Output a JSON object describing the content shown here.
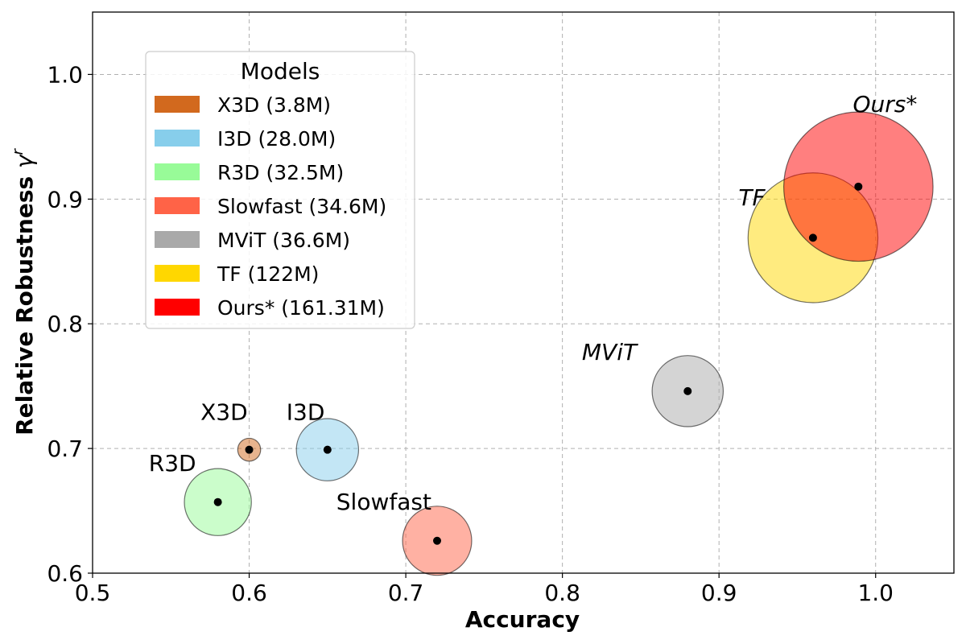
{
  "chart_data": {
    "type": "scatter",
    "xlabel": "Accuracy",
    "ylabel_main": "Relative Robustness ",
    "ylabel_symbol": "γ",
    "ylabel_superscript": "r",
    "xlim": [
      0.5,
      1.05
    ],
    "ylim": [
      0.6,
      1.05
    ],
    "xticks": [
      0.5,
      0.6,
      0.7,
      0.8,
      0.9,
      1.0
    ],
    "xtick_labels": [
      "0.5",
      "0.6",
      "0.7",
      "0.8",
      "0.9",
      "1.0"
    ],
    "yticks": [
      0.6,
      0.7,
      0.8,
      0.9,
      1.0
    ],
    "ytick_labels": [
      "0.6",
      "0.7",
      "0.8",
      "0.9",
      "1.0"
    ],
    "grid": true,
    "legend": {
      "title": "Models",
      "position": "upper-left",
      "entries": [
        {
          "label": "X3D (3.8M)",
          "color": "#D2691E"
        },
        {
          "label": "I3D (28.0M)",
          "color": "#87CEEB"
        },
        {
          "label": "R3D (32.5M)",
          "color": "#98FB98"
        },
        {
          "label": "Slowfast (34.6M)",
          "color": "#FF6347"
        },
        {
          "label": "MViT (36.6M)",
          "color": "#A9A9A9"
        },
        {
          "label": "TF (122M)",
          "color": "#FFD700"
        },
        {
          "label": "Ours* (161.31M)",
          "color": "#FF0000"
        }
      ]
    },
    "points": [
      {
        "name": "X3D",
        "x": 0.6,
        "y": 0.699,
        "params_m": 3.8,
        "color": "#D2691E",
        "label": "X3D",
        "italic": false,
        "label_x": 0.584,
        "label_y": 0.723,
        "anchor": "middle"
      },
      {
        "name": "I3D",
        "x": 0.65,
        "y": 0.699,
        "params_m": 28.0,
        "color": "#87CEEB",
        "label": "I3D",
        "italic": false,
        "label_x": 0.636,
        "label_y": 0.723,
        "anchor": "middle"
      },
      {
        "name": "R3D",
        "x": 0.58,
        "y": 0.657,
        "params_m": 32.5,
        "color": "#98FB98",
        "label": "R3D",
        "italic": false,
        "label_x": 0.551,
        "label_y": 0.682,
        "anchor": "middle"
      },
      {
        "name": "Slowfast",
        "x": 0.72,
        "y": 0.626,
        "params_m": 34.6,
        "color": "#FF6347",
        "label": "Slowfast",
        "italic": false,
        "label_x": 0.686,
        "label_y": 0.651,
        "anchor": "middle"
      },
      {
        "name": "MViT",
        "x": 0.88,
        "y": 0.746,
        "params_m": 36.6,
        "color": "#A9A9A9",
        "label": "MViT",
        "italic": true,
        "label_x": 0.83,
        "label_y": 0.771,
        "anchor": "middle"
      },
      {
        "name": "TF",
        "x": 0.96,
        "y": 0.869,
        "params_m": 122,
        "color": "#FFD700",
        "label": "TF",
        "italic": true,
        "label_x": 0.921,
        "label_y": 0.895,
        "anchor": "middle"
      },
      {
        "name": "Ours*",
        "x": 0.989,
        "y": 0.91,
        "params_m": 161.31,
        "color": "#FF0000",
        "label": "Ours*",
        "italic": true,
        "label_x": 1.006,
        "label_y": 0.97,
        "anchor": "middle"
      }
    ]
  }
}
